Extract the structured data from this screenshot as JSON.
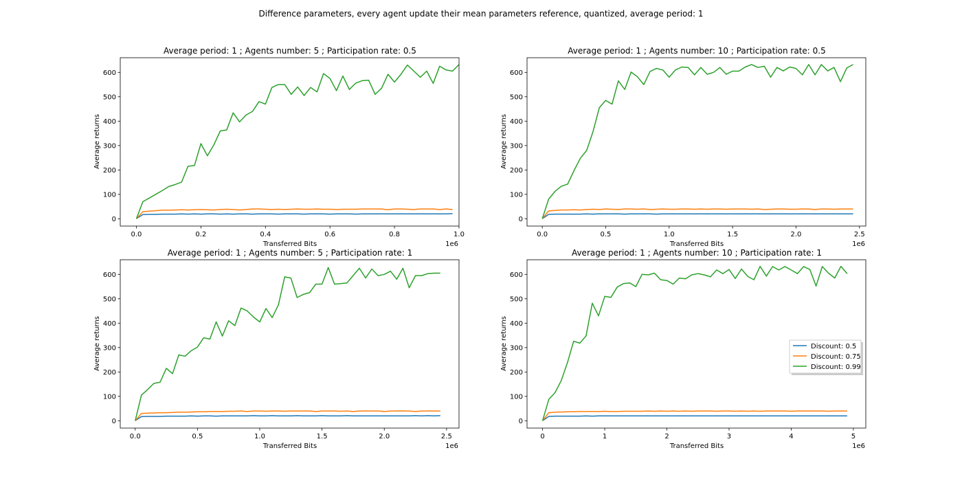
{
  "figure": {
    "suptitle": "Difference parameters, every agent update their mean parameters reference, quantized, average period: 1"
  },
  "colors": {
    "d05": "#1f77b4",
    "d075": "#ff7f0e",
    "d099": "#2ca02c"
  },
  "legend": {
    "placement": "center-right of bottom-right panel",
    "entries": [
      {
        "label": "Discount: 0.5",
        "color": "#1f77b4"
      },
      {
        "label": "Discount: 0.75",
        "color": "#ff7f0e"
      },
      {
        "label": "Discount: 0.99",
        "color": "#2ca02c"
      }
    ]
  },
  "chart_data": [
    {
      "type": "line",
      "title": "Average period: 1 ; Agents number: 5 ; Participation rate: 0.5",
      "xlabel": "Transferred Bits",
      "ylabel": "Average returns",
      "x_offset_label": "1e6",
      "xlim": [
        -0.05,
        1.0
      ],
      "ylim": [
        -30,
        660
      ],
      "xticks": [
        0.0,
        0.2,
        0.4,
        0.6,
        0.8,
        1.0
      ],
      "xtick_labels": [
        "0.0",
        "0.2",
        "0.4",
        "0.6",
        "0.8",
        "1.0"
      ],
      "yticks": [
        0,
        100,
        200,
        300,
        400,
        500,
        600
      ],
      "ytick_labels": [
        "0",
        "100",
        "200",
        "300",
        "400",
        "500",
        "600"
      ],
      "x_start": 0.0,
      "x_step": 0.02,
      "series": [
        {
          "name": "Discount: 0.5",
          "color": "#1f77b4",
          "values": [
            0,
            17,
            18,
            18,
            19,
            19,
            19,
            20,
            19,
            20,
            19,
            20,
            20,
            19,
            20,
            19,
            20,
            20,
            19,
            20,
            20,
            20,
            19,
            20,
            20,
            20,
            19,
            20,
            20,
            20,
            19,
            20,
            20,
            20,
            19,
            20,
            20,
            20,
            20,
            20,
            20,
            20,
            20,
            20,
            20,
            20,
            20,
            20,
            20,
            21
          ]
        },
        {
          "name": "Discount: 0.75",
          "color": "#ff7f0e",
          "values": [
            0,
            29,
            31,
            33,
            35,
            35,
            36,
            37,
            36,
            37,
            38,
            37,
            36,
            38,
            39,
            38,
            36,
            38,
            40,
            40,
            39,
            38,
            39,
            38,
            39,
            40,
            39,
            39,
            40,
            39,
            39,
            38,
            39,
            39,
            39,
            40,
            40,
            40,
            40,
            37,
            40,
            40,
            39,
            38,
            40,
            40,
            40,
            38,
            40,
            38
          ]
        },
        {
          "name": "Discount: 0.99",
          "color": "#2ca02c",
          "values": [
            0,
            70,
            85,
            100,
            115,
            132,
            140,
            150,
            215,
            218,
            308,
            258,
            303,
            360,
            364,
            434,
            397,
            425,
            440,
            480,
            470,
            538,
            550,
            550,
            510,
            540,
            505,
            538,
            520,
            595,
            575,
            525,
            585,
            530,
            556,
            566,
            568,
            510,
            535,
            592,
            560,
            592,
            630,
            605,
            580,
            605,
            555,
            625,
            610,
            605,
            632
          ]
        }
      ]
    },
    {
      "type": "line",
      "title": "Average period: 1 ; Agents number: 10 ; Participation rate: 0.5",
      "xlabel": "Transferred Bits",
      "ylabel": "Average returns",
      "x_offset_label": "1e6",
      "xlim": [
        -0.12,
        2.55
      ],
      "ylim": [
        -30,
        660
      ],
      "xticks": [
        0.0,
        0.5,
        1.0,
        1.5,
        2.0,
        2.5
      ],
      "xtick_labels": [
        "0.0",
        "0.5",
        "1.0",
        "1.5",
        "2.0",
        "2.5"
      ],
      "yticks": [
        0,
        100,
        200,
        300,
        400,
        500,
        600
      ],
      "ytick_labels": [
        "0",
        "100",
        "200",
        "300",
        "400",
        "500",
        "600"
      ],
      "x_start": 0.0,
      "x_step": 0.05,
      "series": [
        {
          "name": "Discount: 0.5",
          "color": "#1f77b4",
          "values": [
            0,
            18,
            19,
            19,
            19,
            19,
            19,
            20,
            19,
            20,
            20,
            20,
            20,
            19,
            20,
            20,
            20,
            20,
            19,
            20,
            20,
            20,
            20,
            20,
            20,
            20,
            20,
            20,
            20,
            20,
            20,
            20,
            20,
            20,
            20,
            20,
            20,
            20,
            20,
            20,
            20,
            20,
            20,
            20,
            20,
            20,
            20,
            20,
            20,
            20
          ]
        },
        {
          "name": "Discount: 0.75",
          "color": "#ff7f0e",
          "values": [
            0,
            32,
            34,
            36,
            36,
            37,
            36,
            38,
            39,
            38,
            40,
            39,
            38,
            40,
            40,
            39,
            40,
            38,
            39,
            40,
            39,
            39,
            40,
            40,
            39,
            40,
            39,
            40,
            40,
            39,
            40,
            40,
            40,
            39,
            40,
            38,
            39,
            40,
            40,
            39,
            39,
            40,
            40,
            38,
            40,
            40,
            39,
            40,
            40,
            40
          ]
        },
        {
          "name": "Discount: 0.99",
          "color": "#2ca02c",
          "values": [
            0,
            80,
            112,
            133,
            142,
            197,
            248,
            280,
            357,
            455,
            485,
            470,
            565,
            530,
            601,
            582,
            550,
            604,
            616,
            610,
            580,
            610,
            622,
            620,
            590,
            620,
            592,
            600,
            620,
            592,
            605,
            605,
            622,
            632,
            620,
            625,
            580,
            620,
            606,
            622,
            616,
            590,
            632,
            590,
            632,
            606,
            620,
            562,
            618,
            632
          ]
        }
      ]
    },
    {
      "type": "line",
      "title": "Average period: 1 ; Agents number: 5 ; Participation rate: 1",
      "xlabel": "Transferred Bits",
      "ylabel": "Average returns",
      "x_offset_label": "1e6",
      "xlim": [
        -0.12,
        2.6
      ],
      "ylim": [
        -30,
        660
      ],
      "xticks": [
        0.0,
        0.5,
        1.0,
        1.5,
        2.0,
        2.5
      ],
      "xtick_labels": [
        "0.0",
        "0.5",
        "1.0",
        "1.5",
        "2.0",
        "2.5"
      ],
      "yticks": [
        0,
        100,
        200,
        300,
        400,
        500,
        600
      ],
      "ytick_labels": [
        "0",
        "100",
        "200",
        "300",
        "400",
        "500",
        "600"
      ],
      "x_start": 0.0,
      "x_step": 0.05,
      "series": [
        {
          "name": "Discount: 0.5",
          "color": "#1f77b4",
          "values": [
            0,
            17,
            18,
            18,
            18,
            19,
            19,
            19,
            19,
            20,
            19,
            20,
            20,
            19,
            20,
            20,
            20,
            20,
            20,
            21,
            20,
            20,
            21,
            20,
            20,
            20,
            21,
            20,
            20,
            20,
            21,
            20,
            20,
            20,
            21,
            20,
            20,
            20,
            20,
            20,
            20,
            20,
            20,
            20,
            20,
            21,
            20,
            21,
            20,
            21
          ]
        },
        {
          "name": "Discount: 0.75",
          "color": "#ff7f0e",
          "values": [
            0,
            30,
            31,
            32,
            33,
            33,
            34,
            35,
            35,
            36,
            37,
            37,
            38,
            38,
            38,
            39,
            39,
            40,
            38,
            40,
            40,
            39,
            40,
            40,
            39,
            40,
            40,
            40,
            40,
            38,
            40,
            40,
            40,
            39,
            40,
            38,
            40,
            40,
            40,
            40,
            38,
            40,
            40,
            40,
            40,
            38,
            40,
            40,
            40,
            40
          ]
        },
        {
          "name": "Discount: 0.99",
          "color": "#2ca02c",
          "values": [
            0,
            105,
            128,
            153,
            158,
            215,
            193,
            270,
            265,
            287,
            302,
            340,
            335,
            405,
            347,
            410,
            390,
            462,
            450,
            425,
            405,
            460,
            423,
            475,
            590,
            585,
            505,
            518,
            525,
            560,
            560,
            628,
            560,
            562,
            565,
            595,
            625,
            585,
            622,
            595,
            600,
            613,
            580,
            625,
            545,
            595,
            595,
            603,
            605,
            605
          ]
        }
      ]
    },
    {
      "type": "line",
      "title": "Average period: 1 ; Agents number: 10 ; Participation rate: 1",
      "xlabel": "Transferred Bits",
      "ylabel": "Average returns",
      "x_offset_label": "1e6",
      "xlim": [
        -0.25,
        5.2
      ],
      "ylim": [
        -30,
        660
      ],
      "xticks": [
        0,
        1,
        2,
        3,
        4,
        5
      ],
      "xtick_labels": [
        "0",
        "1",
        "2",
        "3",
        "4",
        "5"
      ],
      "yticks": [
        0,
        100,
        200,
        300,
        400,
        500,
        600
      ],
      "ytick_labels": [
        "0",
        "100",
        "200",
        "300",
        "400",
        "500",
        "600"
      ],
      "x_start": 0.0,
      "x_step": 0.1,
      "series": [
        {
          "name": "Discount: 0.5",
          "color": "#1f77b4",
          "values": [
            0,
            18,
            19,
            19,
            19,
            19,
            19,
            20,
            19,
            20,
            20,
            20,
            20,
            20,
            20,
            20,
            20,
            20,
            20,
            20,
            20,
            20,
            20,
            20,
            20,
            20,
            20,
            20,
            20,
            20,
            20,
            20,
            20,
            20,
            20,
            20,
            20,
            20,
            20,
            20,
            20,
            20,
            20,
            20,
            20,
            20,
            20,
            20,
            20,
            20
          ]
        },
        {
          "name": "Discount: 0.75",
          "color": "#ff7f0e",
          "values": [
            0,
            33,
            35,
            36,
            37,
            37,
            38,
            38,
            38,
            38,
            39,
            38,
            38,
            39,
            39,
            39,
            39,
            40,
            39,
            40,
            39,
            40,
            39,
            40,
            39,
            40,
            40,
            40,
            39,
            40,
            40,
            39,
            40,
            39,
            40,
            39,
            40,
            40,
            40,
            40,
            39,
            40,
            40,
            40,
            40,
            40,
            39,
            40,
            40,
            40
          ]
        },
        {
          "name": "Discount: 0.99",
          "color": "#2ca02c",
          "values": [
            0,
            88,
            115,
            165,
            238,
            326,
            318,
            348,
            482,
            430,
            510,
            506,
            548,
            562,
            565,
            550,
            600,
            598,
            605,
            578,
            575,
            560,
            585,
            582,
            598,
            603,
            598,
            590,
            618,
            603,
            620,
            583,
            622,
            592,
            578,
            633,
            593,
            632,
            618,
            632,
            618,
            603,
            632,
            620,
            552,
            632,
            605,
            585,
            633,
            603
          ]
        }
      ]
    }
  ]
}
